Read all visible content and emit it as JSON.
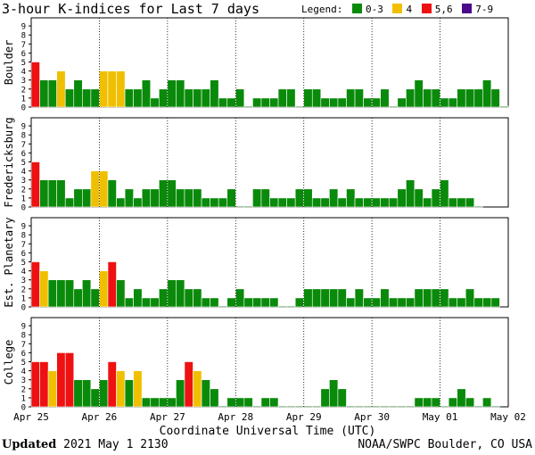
{
  "title": "3-hour K-indices for Last 7 days",
  "legend": {
    "label": "Legend:",
    "items": [
      {
        "label": "0-3",
        "color": "#0a8a0a"
      },
      {
        "label": "4",
        "color": "#f0c000"
      },
      {
        "label": "5,6",
        "color": "#ee1111"
      },
      {
        "label": "7-9",
        "color": "#4b0a8c"
      }
    ]
  },
  "x_title": "Coordinate Universal Time (UTC)",
  "footer": {
    "updated_label": "Updated",
    "updated_value": "2021 May  1 2130",
    "credit": "NOAA/SWPC Boulder, CO USA"
  },
  "chart_data": {
    "type": "bar",
    "x_ticks": [
      "Apr 25",
      "Apr 26",
      "Apr 27",
      "Apr 28",
      "Apr 29",
      "Apr 30",
      "May 01",
      "May 02"
    ],
    "y_ticks": [
      "0",
      "1",
      "2",
      "3",
      "4",
      "5",
      "6",
      "7",
      "8",
      "9"
    ],
    "ylim": [
      0,
      9
    ],
    "interval": "3-hour",
    "panels": [
      {
        "name": "Boulder",
        "values": [
          5,
          3,
          3,
          4,
          2,
          3,
          2,
          2,
          4,
          4,
          4,
          2,
          2,
          3,
          1,
          2,
          3,
          3,
          2,
          2,
          2,
          3,
          1,
          1,
          2,
          0,
          1,
          1,
          1,
          2,
          2,
          0,
          2,
          2,
          1,
          1,
          1,
          2,
          2,
          1,
          1,
          2,
          0,
          1,
          2,
          3,
          2,
          2,
          1,
          1,
          2,
          2,
          2,
          3,
          2,
          0
        ]
      },
      {
        "name": "Fredericksburg",
        "values": [
          5,
          3,
          3,
          3,
          1,
          2,
          2,
          4,
          4,
          3,
          1,
          2,
          1,
          2,
          2,
          3,
          3,
          2,
          2,
          2,
          1,
          1,
          1,
          2,
          0,
          0,
          2,
          2,
          1,
          1,
          1,
          2,
          2,
          1,
          1,
          2,
          1,
          2,
          1,
          1,
          1,
          1,
          1,
          2,
          3,
          2,
          1,
          2,
          3,
          1,
          1,
          1,
          0
        ]
      },
      {
        "name": "Est. Planetary",
        "values": [
          5,
          4,
          3,
          3,
          3,
          2,
          3,
          2,
          4,
          5,
          3,
          1,
          2,
          1,
          1,
          2,
          3,
          3,
          2,
          2,
          1,
          1,
          0,
          1,
          2,
          1,
          1,
          1,
          1,
          0,
          0,
          1,
          2,
          2,
          2,
          2,
          2,
          1,
          2,
          1,
          1,
          2,
          1,
          1,
          1,
          2,
          2,
          2,
          2,
          1,
          1,
          2,
          1,
          1,
          1
        ]
      },
      {
        "name": "College",
        "values": [
          5,
          5,
          4,
          6,
          6,
          3,
          3,
          2,
          3,
          5,
          4,
          3,
          4,
          1,
          1,
          1,
          1,
          3,
          5,
          4,
          3,
          2,
          0,
          1,
          1,
          1,
          0,
          1,
          1,
          0,
          0,
          0,
          0,
          0,
          2,
          3,
          2,
          0,
          0,
          0,
          0,
          0,
          0,
          0,
          0,
          1,
          1,
          1,
          0,
          1,
          2,
          1,
          0,
          1,
          0
        ]
      }
    ]
  }
}
